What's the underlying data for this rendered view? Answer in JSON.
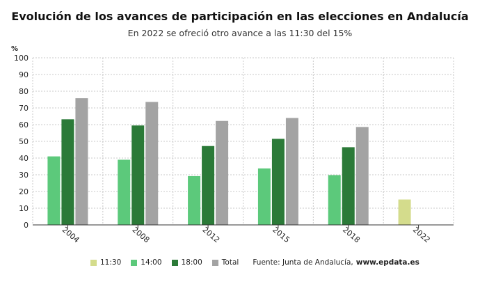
{
  "chart_data": {
    "type": "bar",
    "title": "Evolución de los avances de participación en las elecciones en Andalucía",
    "subtitle": "En 2022 se ofreció otro avance a las 11:30 del 15%",
    "ylabel": "%",
    "ylim": [
      0,
      100
    ],
    "yticks": [
      0,
      10,
      20,
      30,
      40,
      50,
      60,
      70,
      80,
      90,
      100
    ],
    "grid": true,
    "categories": [
      "2004",
      "2008",
      "2012",
      "2015",
      "2018",
      "2022"
    ],
    "series": [
      {
        "name": "11:30",
        "color": "#d4dc8c",
        "values": [
          null,
          null,
          null,
          null,
          null,
          15.2
        ]
      },
      {
        "name": "14:00",
        "color": "#5cc97b",
        "values": [
          41,
          39,
          29.2,
          33.8,
          29.8,
          null
        ]
      },
      {
        "name": "18:00",
        "color": "#2b7a38",
        "values": [
          63.2,
          59.5,
          47.2,
          51.5,
          46.5,
          null
        ]
      },
      {
        "name": "Total",
        "color": "#a3a3a3",
        "values": [
          75.8,
          73.6,
          62.2,
          64,
          58.6,
          null
        ]
      }
    ],
    "legend_position": "bottom"
  },
  "legend": {
    "items": [
      {
        "label": "11:30",
        "color": "#d4dc8c"
      },
      {
        "label": "14:00",
        "color": "#5cc97b"
      },
      {
        "label": "18:00",
        "color": "#2b7a38"
      },
      {
        "label": "Total",
        "color": "#a3a3a3"
      }
    ],
    "source_label": "Fuente: Junta de Andalucía,",
    "source_link": "www.epdata.es"
  }
}
